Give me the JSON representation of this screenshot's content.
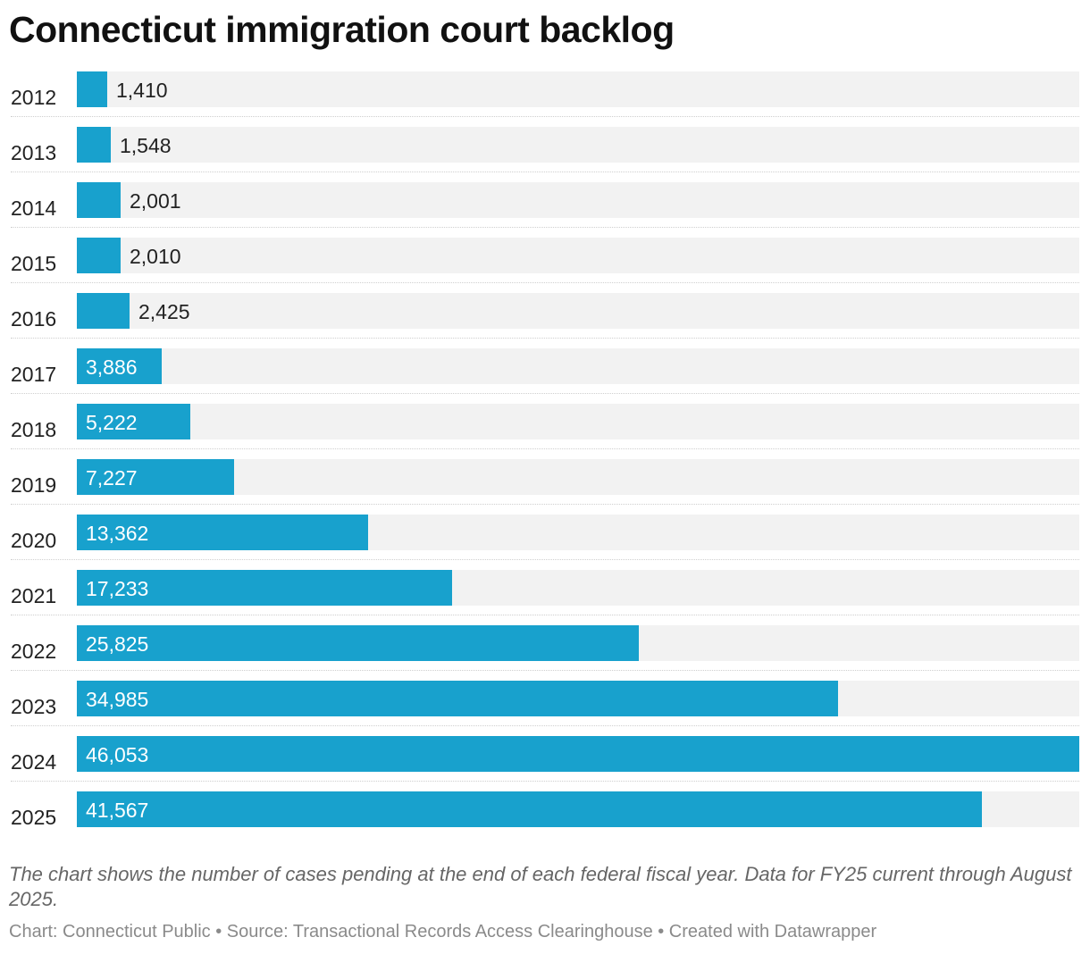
{
  "chart_data": {
    "type": "bar",
    "orientation": "horizontal",
    "title": "Connecticut immigration court backlog",
    "categories": [
      "2012",
      "2013",
      "2014",
      "2015",
      "2016",
      "2017",
      "2018",
      "2019",
      "2020",
      "2021",
      "2022",
      "2023",
      "2024",
      "2025"
    ],
    "values": [
      1410,
      1548,
      2001,
      2010,
      2425,
      3886,
      5222,
      7227,
      13362,
      17233,
      25825,
      34985,
      46053,
      41567
    ],
    "value_labels": [
      "1,410",
      "1,548",
      "2,001",
      "2,010",
      "2,425",
      "3,886",
      "5,222",
      "7,227",
      "13,362",
      "17,233",
      "25,825",
      "34,985",
      "46,053",
      "41,567"
    ],
    "xlim": [
      0,
      46053
    ],
    "xlabel": "",
    "ylabel": "",
    "grid": false,
    "bar_color": "#18a1cd",
    "track_color": "#f2f2f2"
  },
  "notes": "The chart shows the number of cases pending at the end of each federal fiscal year. Data for FY25 current through August 2025.",
  "footer": "Chart: Connecticut Public • Source: Transactional Records Access Clearinghouse • Created with Datawrapper"
}
